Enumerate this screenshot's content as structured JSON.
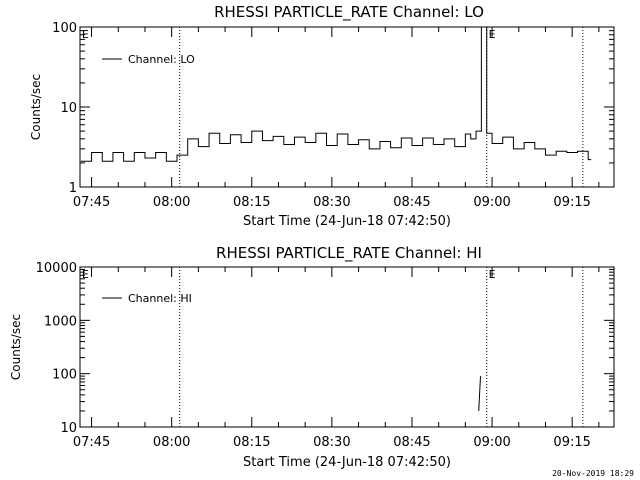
{
  "footer": "20-Nov-2019 18:29",
  "time_tick_labels": [
    "07:45",
    "08:00",
    "08:15",
    "08:30",
    "08:45",
    "09:00",
    "09:15"
  ],
  "flag_marker": "E",
  "chart_data": [
    {
      "type": "line",
      "title": "RHESSI PARTICLE_RATE Channel: LO",
      "xlabel": "Start Time (24-Jun-18 07:42:50)",
      "ylabel": "Counts/sec",
      "y_scale": "log",
      "ylim": [
        1,
        100
      ],
      "y_ticks": [
        1,
        10,
        100
      ],
      "y_tick_labels": [
        "1",
        "10",
        "100"
      ],
      "xlim": [
        "07:42:50",
        "09:22:50"
      ],
      "legend": {
        "position": "top-left",
        "entries": [
          "Channel: LO"
        ]
      },
      "vertical_lines": [
        "08:01:30",
        "08:59:00",
        "09:17:00"
      ],
      "flag_markers_at": [
        "07:43:00",
        "08:59:10"
      ],
      "series": [
        {
          "name": "Channel: LO",
          "x": [
            "07:43",
            "07:45",
            "07:47",
            "07:49",
            "07:51",
            "07:53",
            "07:55",
            "07:57",
            "07:59",
            "08:01",
            "08:03",
            "08:05",
            "08:07",
            "08:09",
            "08:11",
            "08:13",
            "08:15",
            "08:17",
            "08:19",
            "08:21",
            "08:23",
            "08:25",
            "08:27",
            "08:29",
            "08:31",
            "08:33",
            "08:35",
            "08:37",
            "08:39",
            "08:41",
            "08:43",
            "08:45",
            "08:47",
            "08:49",
            "08:51",
            "08:53",
            "08:55",
            "08:56",
            "08:57",
            "08:58",
            "08:59",
            "09:00",
            "09:02",
            "09:04",
            "09:06",
            "09:08",
            "09:10",
            "09:12",
            "09:14",
            "09:16",
            "09:18"
          ],
          "y": [
            2.1,
            2.7,
            2.1,
            2.7,
            2.1,
            2.7,
            2.3,
            2.7,
            2.1,
            2.5,
            4.0,
            3.2,
            4.7,
            3.5,
            4.5,
            3.6,
            5.0,
            3.8,
            4.3,
            3.4,
            4.2,
            3.6,
            4.7,
            3.3,
            4.6,
            3.4,
            3.9,
            3.0,
            3.7,
            3.1,
            4.1,
            3.3,
            4.1,
            3.4,
            4.0,
            3.2,
            4.6,
            4.0,
            5.0,
            100,
            4.7,
            3.5,
            4.2,
            3.0,
            3.6,
            3.0,
            2.5,
            2.8,
            2.7,
            2.8,
            2.2
          ]
        }
      ]
    },
    {
      "type": "line",
      "title": "RHESSI PARTICLE_RATE Channel: HI",
      "xlabel": "Start Time (24-Jun-18 07:42:50)",
      "ylabel": "Counts/sec",
      "y_scale": "log",
      "ylim": [
        10,
        10000
      ],
      "y_ticks": [
        10,
        100,
        1000,
        10000
      ],
      "y_tick_labels": [
        "10",
        "100",
        "1000",
        "10000"
      ],
      "xlim": [
        "07:42:50",
        "09:22:50"
      ],
      "legend": {
        "position": "top-left",
        "entries": [
          "Channel: HI"
        ]
      },
      "vertical_lines": [
        "08:01:30",
        "08:59:00",
        "09:17:00"
      ],
      "flag_markers_at": [
        "07:43:00",
        "08:59:10"
      ],
      "series": [
        {
          "name": "Channel: HI",
          "x": [
            "08:57:30",
            "08:57:50"
          ],
          "y": [
            20,
            90
          ]
        }
      ]
    }
  ]
}
